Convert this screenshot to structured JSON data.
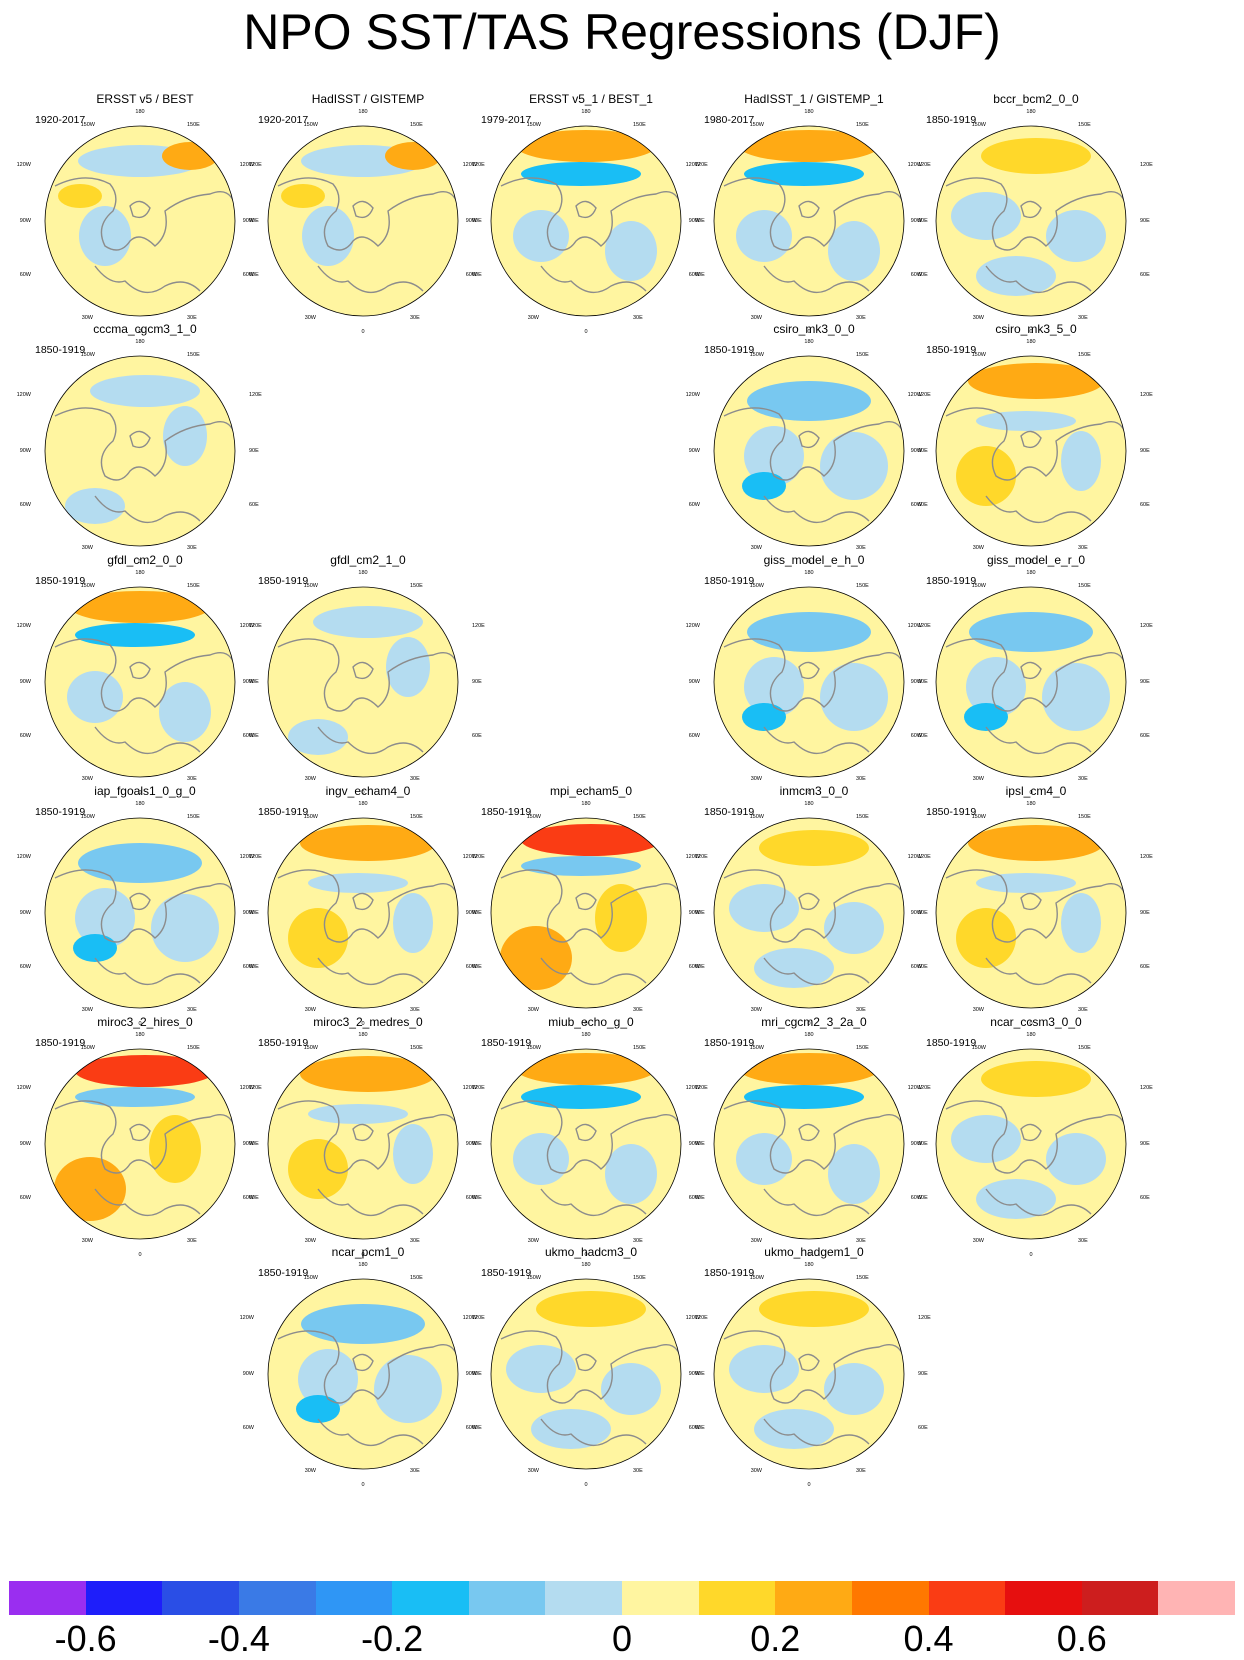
{
  "title": "NPO SST/TAS Regressions (DJF)",
  "map_labels": {
    "top": "180",
    "tl": "150W",
    "tr": "150E",
    "ul": "120W",
    "ur": "120E",
    "l": "90W",
    "r": "90E",
    "ll": "60W",
    "lr": "60E",
    "bl": "30W",
    "br": "30E",
    "bottom": "0"
  },
  "panels": [
    {
      "id": "ersst-v5-best",
      "title": "ERSST v5 / BEST",
      "period": "1920-2017",
      "row": 0,
      "col": 0,
      "pattern": "obs"
    },
    {
      "id": "hadisst-gistemp",
      "title": "HadISST / GISTEMP",
      "period": "1920-2017",
      "row": 0,
      "col": 1,
      "pattern": "obs"
    },
    {
      "id": "ersst-v5-1-best-1",
      "title": "ERSST v5_1 / BEST_1",
      "period": "1979-2017",
      "row": 0,
      "col": 2,
      "pattern": "strong"
    },
    {
      "id": "hadisst-1-gistemp-1",
      "title": "HadISST_1 / GISTEMP_1",
      "period": "1980-2017",
      "row": 0,
      "col": 3,
      "pattern": "strong"
    },
    {
      "id": "bccr-bcm2-0-0",
      "title": "bccr_bcm2_0_0",
      "period": "1850-1919",
      "row": 0,
      "col": 4,
      "pattern": "mixed"
    },
    {
      "id": "cccma-cgcm3-1-0",
      "title": "cccma_cgcm3_1_0",
      "period": "1850-1919",
      "row": 1,
      "col": 0,
      "pattern": "weak"
    },
    {
      "id": "csiro-mk3-0-0",
      "title": "csiro_mk3_0_0",
      "period": "1850-1919",
      "row": 1,
      "col": 3,
      "pattern": "cool"
    },
    {
      "id": "csiro-mk3-5-0",
      "title": "csiro_mk3_5_0",
      "period": "1850-1919",
      "row": 1,
      "col": 4,
      "pattern": "warm"
    },
    {
      "id": "gfdl-cm2-0-0",
      "title": "gfdl_cm2_0_0",
      "period": "1850-1919",
      "row": 2,
      "col": 0,
      "pattern": "strong"
    },
    {
      "id": "gfdl-cm2-1-0",
      "title": "gfdl_cm2_1_0",
      "period": "1850-1919",
      "row": 2,
      "col": 1,
      "pattern": "weak"
    },
    {
      "id": "giss-model-e-h-0",
      "title": "giss_model_e_h_0",
      "period": "1850-1919",
      "row": 2,
      "col": 3,
      "pattern": "cool"
    },
    {
      "id": "giss-model-e-r-0",
      "title": "giss_model_e_r_0",
      "period": "1850-1919",
      "row": 2,
      "col": 4,
      "pattern": "cool"
    },
    {
      "id": "iap-fgoals1-0-g-0",
      "title": "iap_fgoals1_0_g_0",
      "period": "1850-1919",
      "row": 3,
      "col": 0,
      "pattern": "cool"
    },
    {
      "id": "ingv-echam4-0",
      "title": "ingv_echam4_0",
      "period": "1850-1919",
      "row": 3,
      "col": 1,
      "pattern": "warm"
    },
    {
      "id": "mpi-echam5-0",
      "title": "mpi_echam5_0",
      "period": "1850-1919",
      "row": 3,
      "col": 2,
      "pattern": "hot"
    },
    {
      "id": "inmcm3-0-0",
      "title": "inmcm3_0_0",
      "period": "1850-1919",
      "row": 3,
      "col": 3,
      "pattern": "mixed"
    },
    {
      "id": "ipsl-cm4-0",
      "title": "ipsl_cm4_0",
      "period": "1850-1919",
      "row": 3,
      "col": 4,
      "pattern": "warm"
    },
    {
      "id": "miroc3-2-hires-0",
      "title": "miroc3_2_hires_0",
      "period": "1850-1919",
      "row": 4,
      "col": 0,
      "pattern": "hot"
    },
    {
      "id": "miroc3-2-medres-0",
      "title": "miroc3_2_medres_0",
      "period": "1850-1919",
      "row": 4,
      "col": 1,
      "pattern": "warm"
    },
    {
      "id": "miub-echo-g-0",
      "title": "miub_echo_g_0",
      "period": "1850-1919",
      "row": 4,
      "col": 2,
      "pattern": "strong"
    },
    {
      "id": "mri-cgcm2-3-2a-0",
      "title": "mri_cgcm2_3_2a_0",
      "period": "1850-1919",
      "row": 4,
      "col": 3,
      "pattern": "strong"
    },
    {
      "id": "ncar-ccsm3-0-0",
      "title": "ncar_ccsm3_0_0",
      "period": "1850-1919",
      "row": 4,
      "col": 4,
      "pattern": "mixed"
    },
    {
      "id": "ncar-pcm1-0",
      "title": "ncar_pcm1_0",
      "period": "1850-1919",
      "row": 5,
      "col": 1,
      "pattern": "cool"
    },
    {
      "id": "ukmo-hadcm3-0",
      "title": "ukmo_hadcm3_0",
      "period": "1850-1919",
      "row": 5,
      "col": 2,
      "pattern": "mixed"
    },
    {
      "id": "ukmo-hadgem1-0",
      "title": "ukmo_hadgem1_0",
      "period": "1850-1919",
      "row": 5,
      "col": 3,
      "pattern": "mixed"
    }
  ],
  "colorbar": {
    "colors": [
      "#9a2ef0",
      "#1e1efa",
      "#2a4ee6",
      "#3a7ae6",
      "#2f96f5",
      "#19bef5",
      "#78c8f0",
      "#b4dcf0",
      "#fff5a0",
      "#ffd82a",
      "#ffaa14",
      "#ff7800",
      "#fa3c14",
      "#e60f0f",
      "#cd1e1e",
      "#ffb4b4"
    ],
    "ticks": [
      {
        "label": "-0.6",
        "frac": 0.0625
      },
      {
        "label": "-0.4",
        "frac": 0.1875
      },
      {
        "label": "-0.2",
        "frac": 0.3125
      },
      {
        "label": "0",
        "frac": 0.5
      },
      {
        "label": "0.2",
        "frac": 0.625
      },
      {
        "label": "0.4",
        "frac": 0.75
      },
      {
        "label": "0.6",
        "frac": 0.875
      }
    ]
  }
}
